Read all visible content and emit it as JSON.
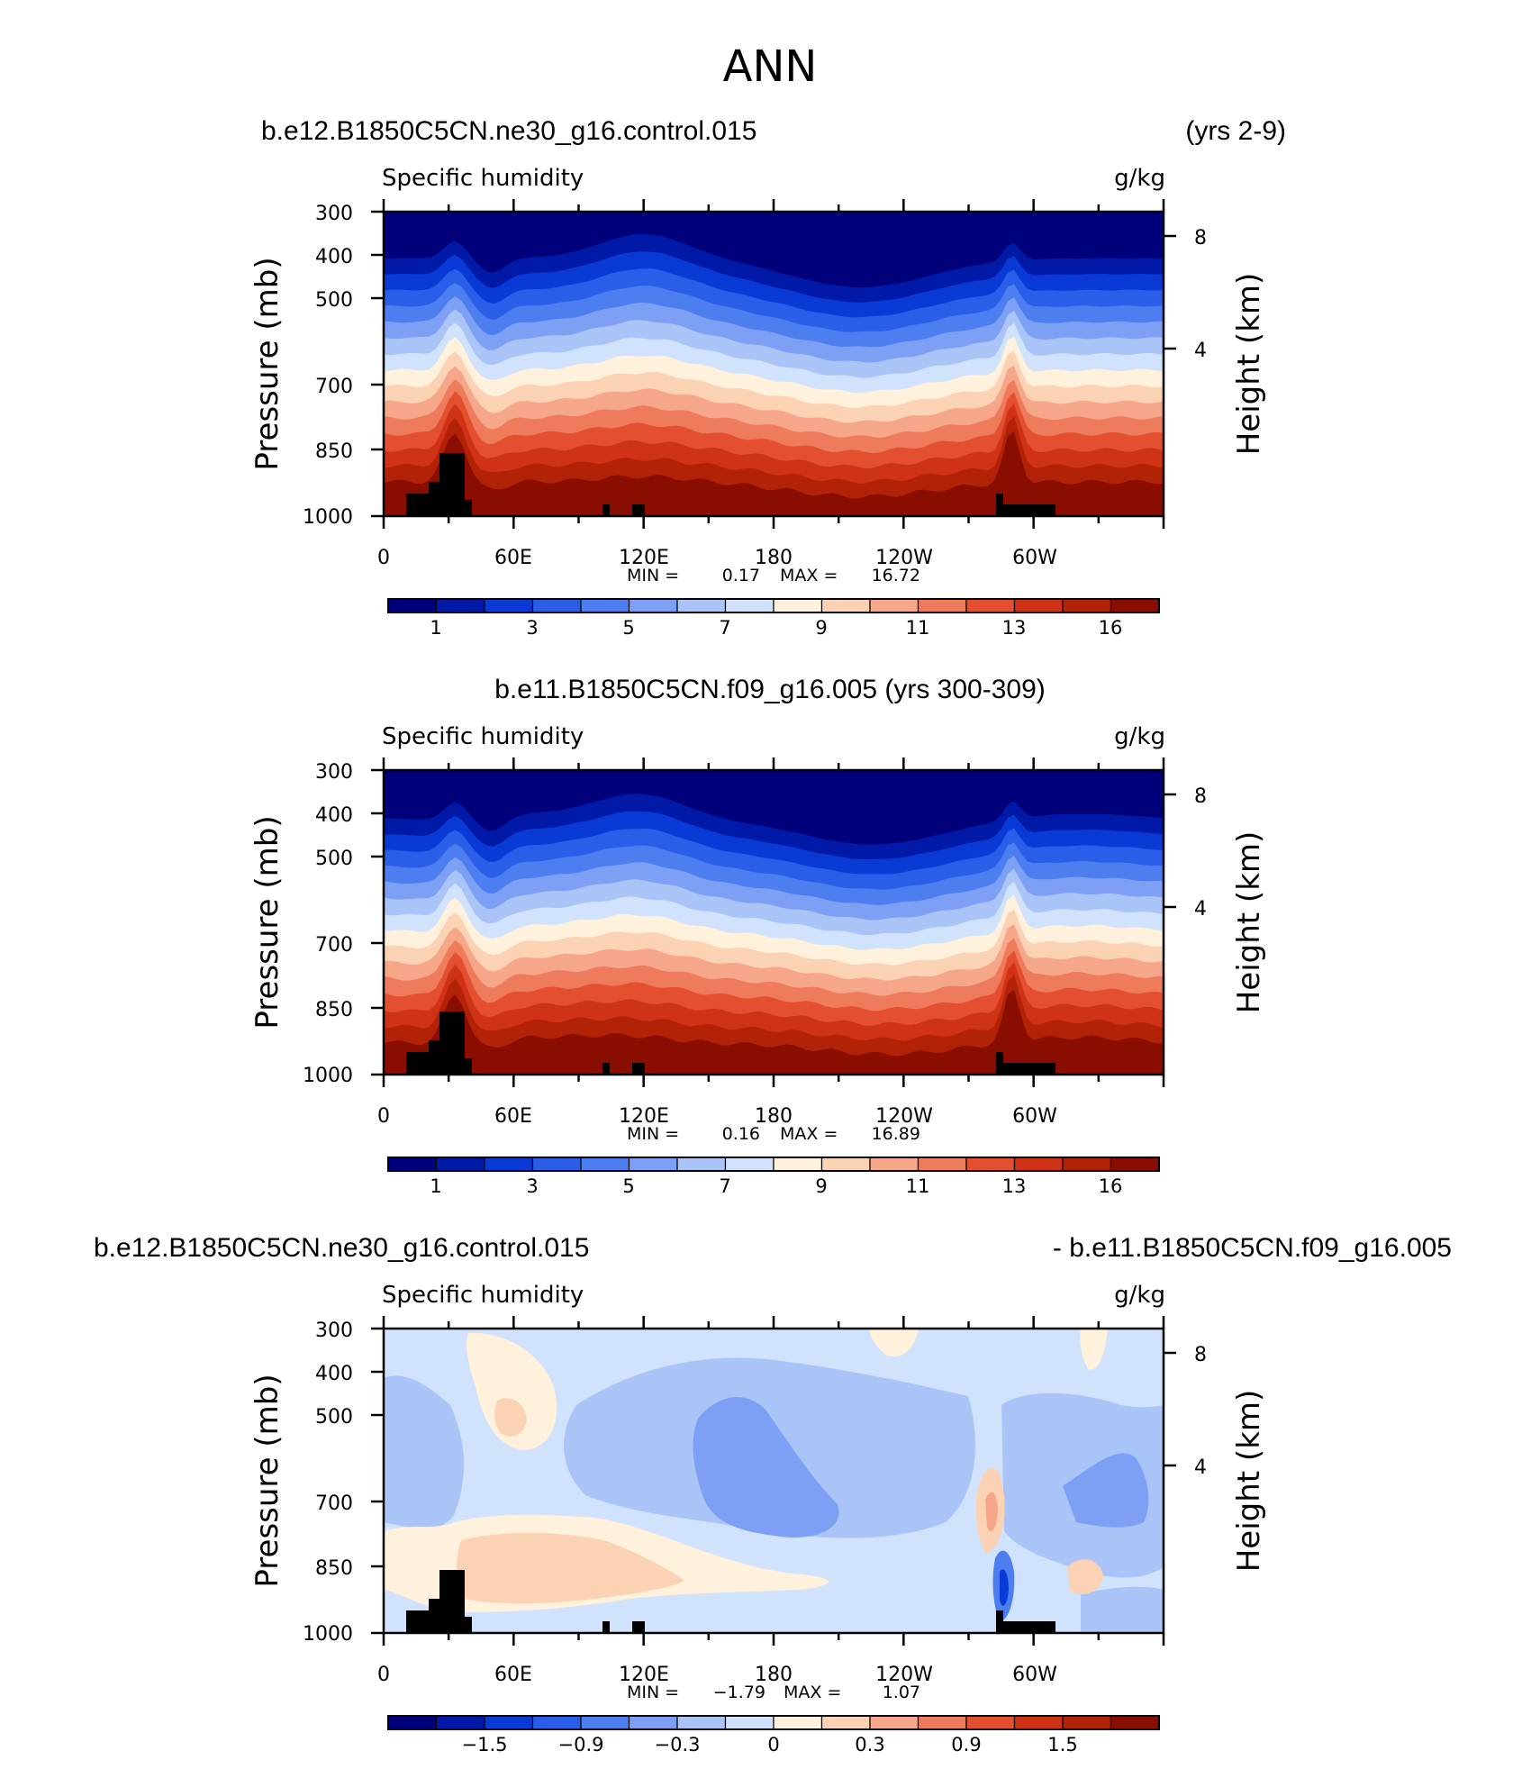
{
  "title": "ANN",
  "chart_data": [
    {
      "type": "heatmap",
      "case_title": "b.e12.B1850C5CN.ne30_g16.control.015",
      "case_years": "(yrs 2-9)",
      "variable": "Specific humidity",
      "units": "g/kg",
      "ylabel": "Pressure (mb)",
      "y2label": "Height (km)",
      "yticks": [
        "300",
        "400",
        "500",
        "700",
        "850",
        "1000"
      ],
      "y2ticks": [
        "8",
        "4"
      ],
      "xticks": [
        "0",
        "60E",
        "120E",
        "180",
        "120W",
        "60W"
      ],
      "min_label": "MIN =",
      "min_value": "0.17",
      "max_label": "MAX =",
      "max_value": "16.72",
      "colorbar_labels": [
        "1",
        "3",
        "5",
        "7",
        "9",
        "11",
        "13",
        "16"
      ],
      "colorbar_levels": [
        0.5,
        1,
        2,
        3,
        4,
        5,
        6,
        7,
        8,
        9,
        10,
        11,
        12,
        13,
        14,
        16
      ],
      "profile_note": "longitude vs pressure cross-section; low values aloft, high values near surface"
    },
    {
      "type": "heatmap",
      "case_title": "b.e11.B1850C5CN.f09_g16.005 (yrs 300-309)",
      "variable": "Specific humidity",
      "units": "g/kg",
      "ylabel": "Pressure (mb)",
      "y2label": "Height (km)",
      "yticks": [
        "300",
        "400",
        "500",
        "700",
        "850",
        "1000"
      ],
      "y2ticks": [
        "8",
        "4"
      ],
      "xticks": [
        "0",
        "60E",
        "120E",
        "180",
        "120W",
        "60W"
      ],
      "min_label": "MIN =",
      "min_value": "0.16",
      "max_label": "MAX =",
      "max_value": "16.89",
      "colorbar_labels": [
        "1",
        "3",
        "5",
        "7",
        "9",
        "11",
        "13",
        "16"
      ],
      "colorbar_levels": [
        0.5,
        1,
        2,
        3,
        4,
        5,
        6,
        7,
        8,
        9,
        10,
        11,
        12,
        13,
        14,
        16
      ]
    },
    {
      "type": "heatmap",
      "case_title_left": "b.e12.B1850C5CN.ne30_g16.control.015",
      "case_title_right": "- b.e11.B1850C5CN.f09_g16.005",
      "variable": "Specific humidity",
      "units": "g/kg",
      "ylabel": "Pressure (mb)",
      "y2label": "Height (km)",
      "yticks": [
        "300",
        "400",
        "500",
        "700",
        "850",
        "1000"
      ],
      "y2ticks": [
        "8",
        "4"
      ],
      "xticks": [
        "0",
        "60E",
        "120E",
        "180",
        "120W",
        "60W"
      ],
      "min_label": "MIN =",
      "min_value": "−1.79",
      "max_label": "MAX =",
      "max_value": "1.07",
      "colorbar_labels": [
        "−1.5",
        "−0.9",
        "−0.3",
        "0",
        "0.3",
        "0.9",
        "1.5"
      ],
      "colorbar_levels": [
        -1.8,
        -1.5,
        -1.2,
        -0.9,
        -0.6,
        -0.3,
        -0.1,
        0,
        0.1,
        0.3,
        0.6,
        0.9,
        1.2,
        1.5,
        1.8
      ]
    }
  ],
  "colors": {
    "palette": [
      "#00007a",
      "#0019a6",
      "#0a3ad6",
      "#2a5ee8",
      "#4d7ef0",
      "#7ea0f4",
      "#aac4f8",
      "#d0e2fc",
      "#fff1dc",
      "#fcd2b4",
      "#f6a78a",
      "#ee7c5c",
      "#e4502f",
      "#cf3214",
      "#b22206",
      "#8a0e00"
    ],
    "topo": "#000000"
  }
}
